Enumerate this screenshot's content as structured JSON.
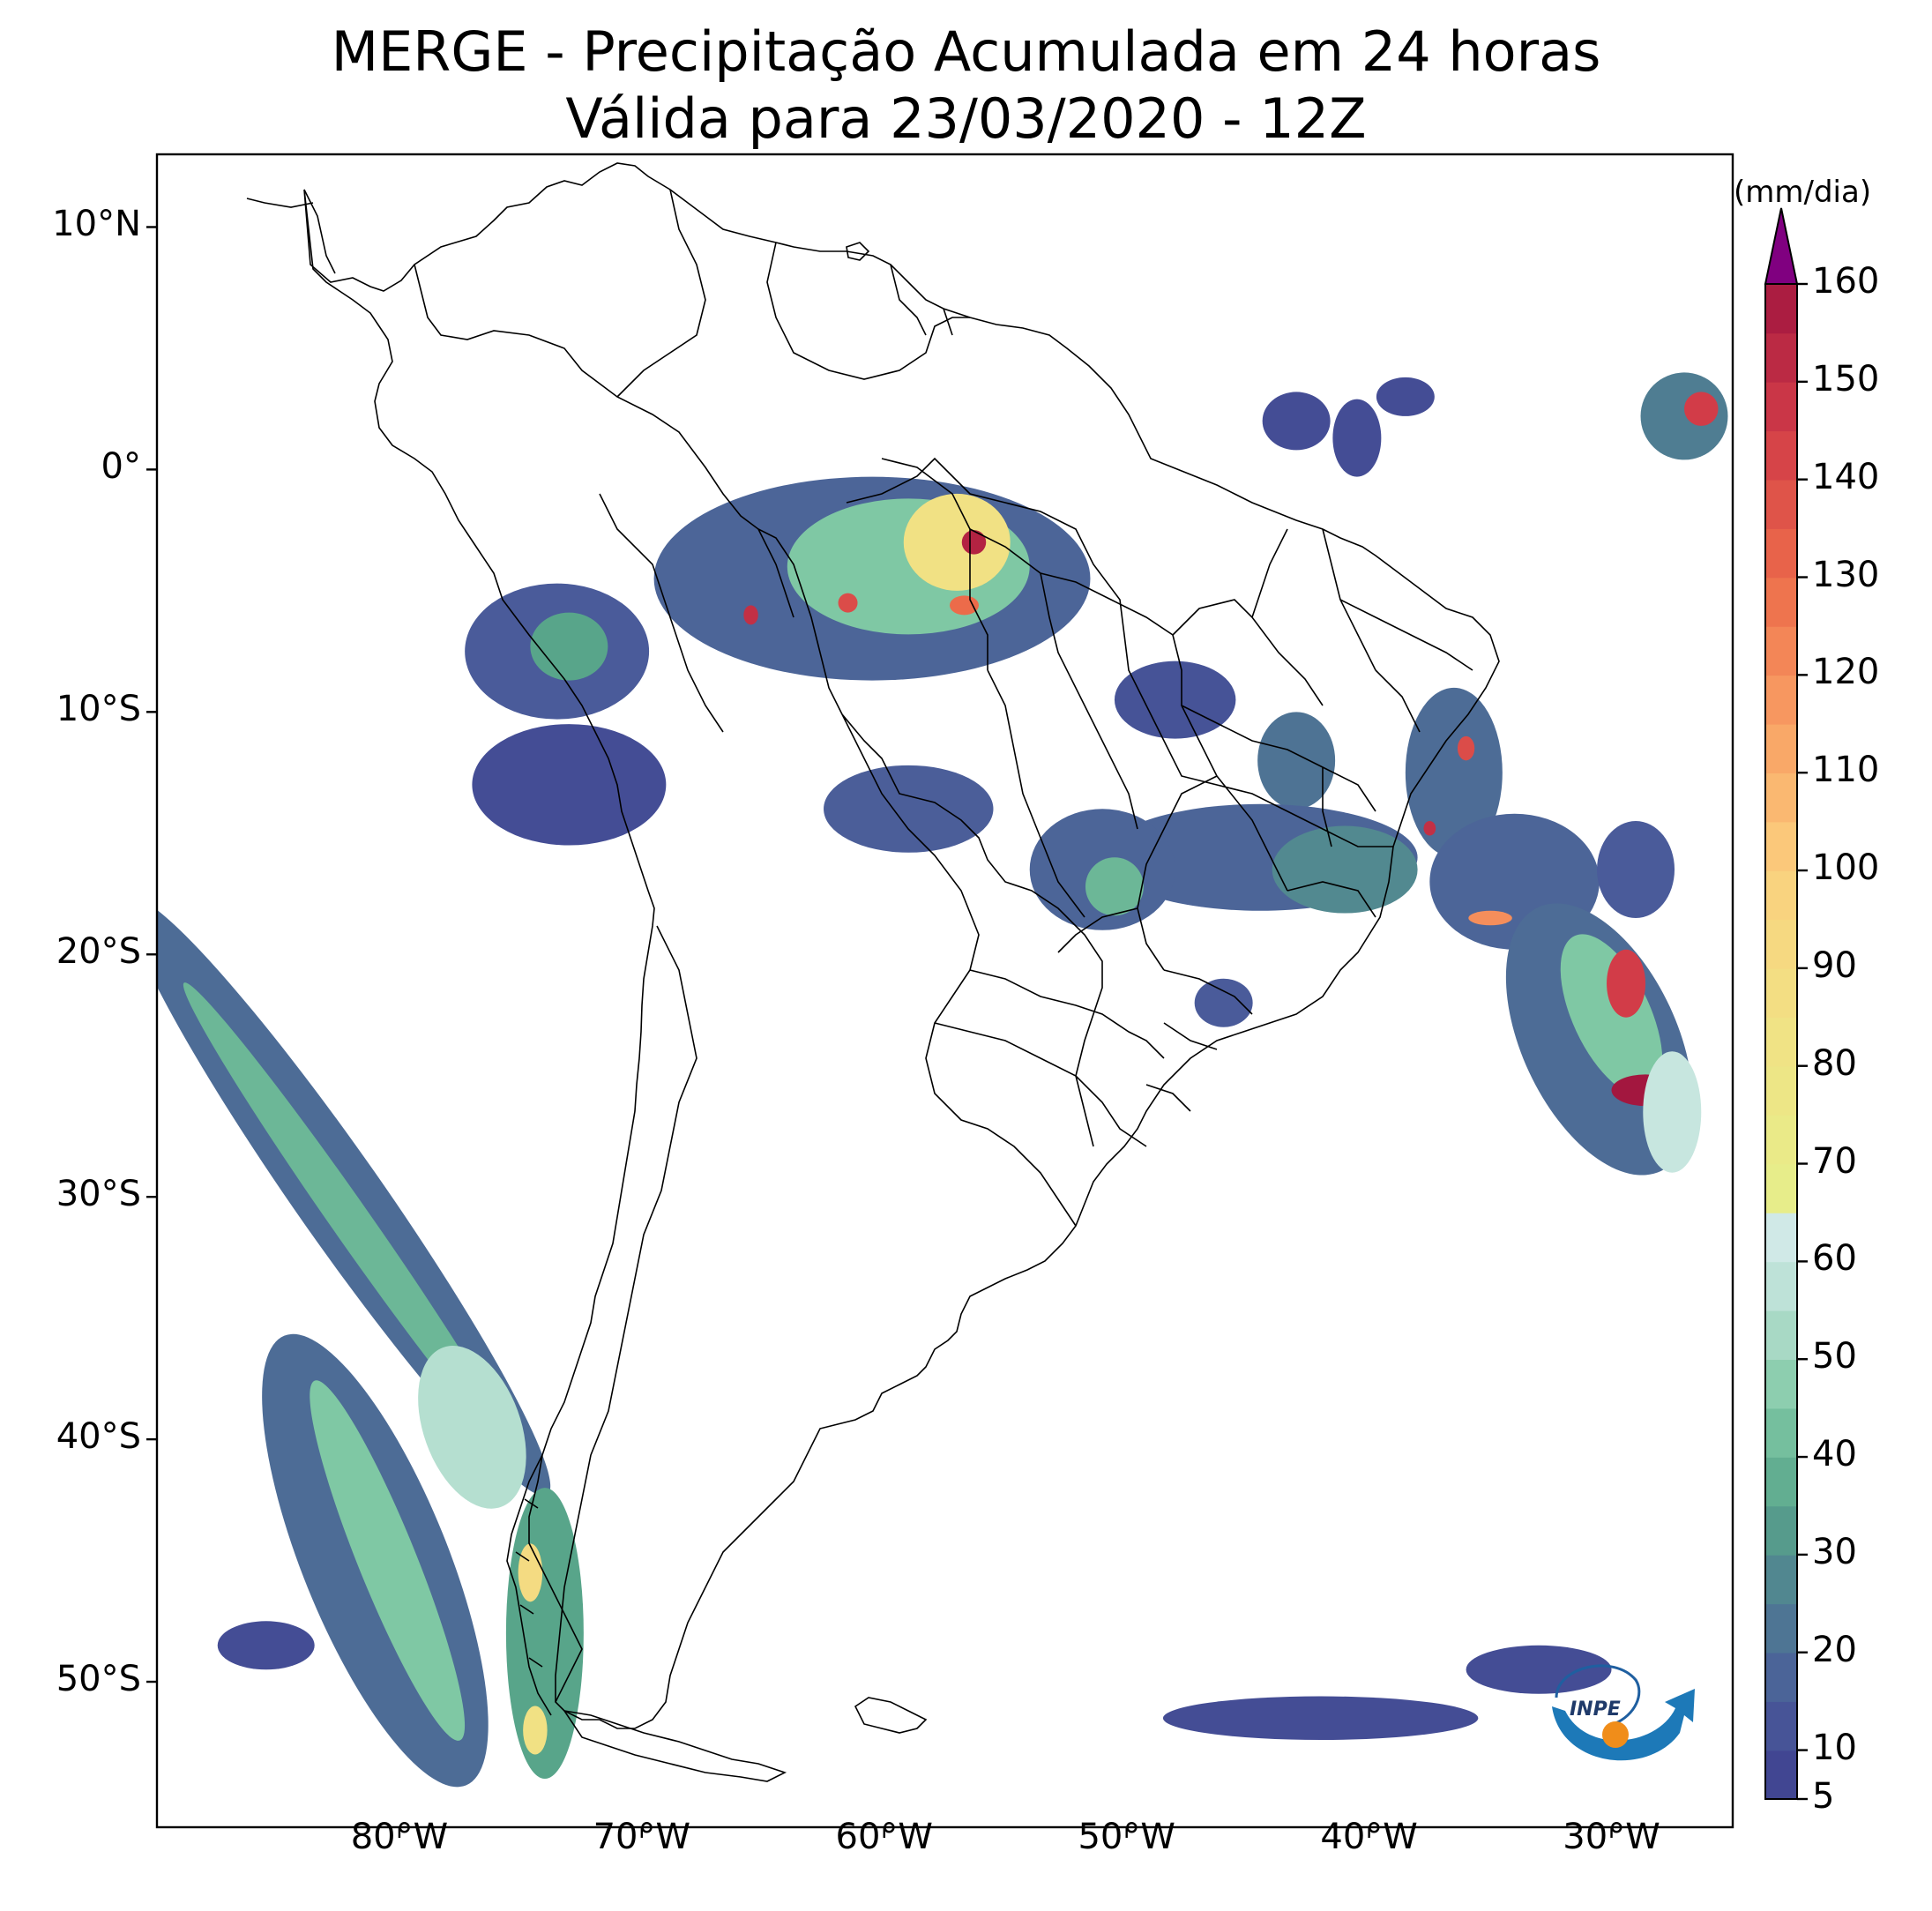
{
  "title": {
    "line1": "MERGE - Precipitação Acumulada em 24 horas",
    "line2": "Válida para 23/03/2020 - 12Z"
  },
  "map": {
    "lon_range": [
      -90,
      -25
    ],
    "lat_range": [
      -56,
      13
    ],
    "lat_ticks": [
      {
        "value": 10,
        "label": "10°N"
      },
      {
        "value": 0,
        "label": "0°"
      },
      {
        "value": -10,
        "label": "10°S"
      },
      {
        "value": -20,
        "label": "20°S"
      },
      {
        "value": -30,
        "label": "30°S"
      },
      {
        "value": -40,
        "label": "40°S"
      },
      {
        "value": -50,
        "label": "50°S"
      }
    ],
    "lon_ticks": [
      {
        "value": -80,
        "label": "80°W"
      },
      {
        "value": -70,
        "label": "70°W"
      },
      {
        "value": -60,
        "label": "60°W"
      },
      {
        "value": -50,
        "label": "50°W"
      },
      {
        "value": -40,
        "label": "40°W"
      },
      {
        "value": -30,
        "label": "30°W"
      }
    ]
  },
  "colorbar": {
    "unit": "(mm/dia)",
    "ticks": [
      {
        "value": 5,
        "label": "5"
      },
      {
        "value": 10,
        "label": "10"
      },
      {
        "value": 20,
        "label": "20"
      },
      {
        "value": 30,
        "label": "30"
      },
      {
        "value": 40,
        "label": "40"
      },
      {
        "value": 50,
        "label": "50"
      },
      {
        "value": 60,
        "label": "60"
      },
      {
        "value": 70,
        "label": "70"
      },
      {
        "value": 80,
        "label": "80"
      },
      {
        "value": 90,
        "label": "90"
      },
      {
        "value": 100,
        "label": "100"
      },
      {
        "value": 110,
        "label": "110"
      },
      {
        "value": 120,
        "label": "120"
      },
      {
        "value": 130,
        "label": "130"
      },
      {
        "value": 140,
        "label": "140"
      },
      {
        "value": 150,
        "label": "150"
      },
      {
        "value": 160,
        "label": "160"
      }
    ],
    "stops": [
      {
        "value": 5,
        "color": "#3e3f8f"
      },
      {
        "value": 15,
        "color": "#4a5b9a"
      },
      {
        "value": 25,
        "color": "#4f7d92"
      },
      {
        "value": 35,
        "color": "#58a58a"
      },
      {
        "value": 45,
        "color": "#7fc8a4"
      },
      {
        "value": 55,
        "color": "#b5dfd0"
      },
      {
        "value": 65,
        "color": "#d9ecee"
      },
      {
        "value": 66,
        "color": "#e6ee8a"
      },
      {
        "value": 85,
        "color": "#f1e184"
      },
      {
        "value": 100,
        "color": "#fbd07e"
      },
      {
        "value": 115,
        "color": "#f9a064"
      },
      {
        "value": 130,
        "color": "#ec6b4a"
      },
      {
        "value": 145,
        "color": "#d23c48"
      },
      {
        "value": 160,
        "color": "#a3173f"
      }
    ],
    "extend_color": "#800080"
  },
  "logo": {
    "text": "INPE"
  },
  "precip_areas": [
    {
      "lon": -60.5,
      "lat": -4.5,
      "rx": 9,
      "ry": 4.2,
      "value": 18
    },
    {
      "lon": -59.0,
      "lat": -4.0,
      "rx": 5,
      "ry": 2.8,
      "value": 45
    },
    {
      "lon": -57.0,
      "lat": -3.0,
      "rx": 2.2,
      "ry": 2.0,
      "value": 85
    },
    {
      "lon": -56.3,
      "lat": -3.0,
      "rx": 0.5,
      "ry": 0.5,
      "value": 155
    },
    {
      "lon": -56.7,
      "lat": -5.6,
      "rx": 0.6,
      "ry": 0.4,
      "value": 130
    },
    {
      "lon": -61.5,
      "lat": -5.5,
      "rx": 0.4,
      "ry": 0.4,
      "value": 140
    },
    {
      "lon": -65.5,
      "lat": -6.0,
      "rx": 0.3,
      "ry": 0.4,
      "value": 150
    },
    {
      "lon": -73.5,
      "lat": -7.5,
      "rx": 3.8,
      "ry": 2.8,
      "value": 15
    },
    {
      "lon": -73.0,
      "lat": -7.3,
      "rx": 1.6,
      "ry": 1.4,
      "value": 35
    },
    {
      "lon": -73.0,
      "lat": -13.0,
      "rx": 4,
      "ry": 2.5,
      "value": 10
    },
    {
      "lon": -59.0,
      "lat": -14.0,
      "rx": 3.5,
      "ry": 1.8,
      "value": 16
    },
    {
      "lon": -48.0,
      "lat": -9.5,
      "rx": 2.5,
      "ry": 1.6,
      "value": 12
    },
    {
      "lon": -43.0,
      "lat": -12.0,
      "rx": 1.6,
      "ry": 2.0,
      "value": 22
    },
    {
      "lon": -44.5,
      "lat": -16.0,
      "rx": 6.5,
      "ry": 2.2,
      "value": 18
    },
    {
      "lon": -41.0,
      "lat": -16.5,
      "rx": 3.0,
      "ry": 1.8,
      "value": 28
    },
    {
      "lon": -51.0,
      "lat": -16.5,
      "rx": 3.0,
      "ry": 2.5,
      "value": 18
    },
    {
      "lon": -50.5,
      "lat": -17.2,
      "rx": 1.2,
      "ry": 1.2,
      "value": 40
    },
    {
      "lon": -46.0,
      "lat": -22.0,
      "rx": 1.2,
      "ry": 1.0,
      "value": 15
    },
    {
      "lon": -36.5,
      "lat": -12.5,
      "rx": 2.0,
      "ry": 3.5,
      "value": 20
    },
    {
      "lon": -34.0,
      "lat": -17.0,
      "rx": 3.5,
      "ry": 2.8,
      "value": 18
    },
    {
      "lon": -35.0,
      "lat": -18.5,
      "rx": 0.9,
      "ry": 0.3,
      "value": 120
    },
    {
      "lon": -36.0,
      "lat": -11.5,
      "rx": 0.35,
      "ry": 0.5,
      "value": 140
    },
    {
      "lon": -37.5,
      "lat": -14.8,
      "rx": 0.25,
      "ry": 0.3,
      "value": 150
    },
    {
      "lon": -30.5,
      "lat": -23.5,
      "rx": 3.2,
      "ry": 6.0,
      "value": 20,
      "rot": -25
    },
    {
      "lon": -30.0,
      "lat": -22.5,
      "rx": 1.6,
      "ry": 3.6,
      "value": 45,
      "rot": -25
    },
    {
      "lon": -29.4,
      "lat": -21.2,
      "rx": 0.8,
      "ry": 1.4,
      "value": 145
    },
    {
      "lon": -28.6,
      "lat": -25.6,
      "rx": 1.4,
      "ry": 0.65,
      "value": 160
    },
    {
      "lon": -27.5,
      "lat": -26.5,
      "rx": 1.2,
      "ry": 2.5,
      "value": 60
    },
    {
      "lon": -29.0,
      "lat": -16.5,
      "rx": 1.6,
      "ry": 2.0,
      "value": 15
    },
    {
      "lon": -27.0,
      "lat": 2.2,
      "rx": 1.8,
      "ry": 1.8,
      "value": 25
    },
    {
      "lon": -26.3,
      "lat": 2.5,
      "rx": 0.7,
      "ry": 0.7,
      "value": 145
    },
    {
      "lon": -43.0,
      "lat": 2.0,
      "rx": 1.4,
      "ry": 1.2,
      "value": 10
    },
    {
      "lon": -38.5,
      "lat": 3.0,
      "rx": 1.2,
      "ry": 0.8,
      "value": 10
    },
    {
      "lon": -40.5,
      "lat": 1.3,
      "rx": 1.0,
      "ry": 1.6,
      "value": 10
    },
    {
      "lon": -82.5,
      "lat": -30.0,
      "rx": 1.8,
      "ry": 15,
      "value": 20,
      "rot": -35
    },
    {
      "lon": -82.0,
      "lat": -31.0,
      "rx": 0.8,
      "ry": 12,
      "value": 40,
      "rot": -35
    },
    {
      "lon": -81.0,
      "lat": -45.0,
      "rx": 3.0,
      "ry": 10,
      "value": 20,
      "rot": -22
    },
    {
      "lon": -80.5,
      "lat": -45.0,
      "rx": 1.2,
      "ry": 8,
      "value": 45,
      "rot": -22
    },
    {
      "lon": -77.0,
      "lat": -39.5,
      "rx": 2.0,
      "ry": 3.5,
      "value": 55,
      "rot": -20
    },
    {
      "lon": -74.0,
      "lat": -48.0,
      "rx": 1.6,
      "ry": 6.0,
      "value": 35
    },
    {
      "lon": -74.6,
      "lat": -45.5,
      "rx": 0.5,
      "ry": 1.2,
      "value": 90
    },
    {
      "lon": -74.4,
      "lat": -52.0,
      "rx": 0.5,
      "ry": 1.0,
      "value": 85
    },
    {
      "lon": -85.5,
      "lat": -48.5,
      "rx": 2.0,
      "ry": 1.0,
      "value": 10
    },
    {
      "lon": -42.0,
      "lat": -51.5,
      "rx": 6.5,
      "ry": 0.9,
      "value": 10
    },
    {
      "lon": -33.0,
      "lat": -49.5,
      "rx": 3.0,
      "ry": 1.0,
      "value": 10
    }
  ]
}
